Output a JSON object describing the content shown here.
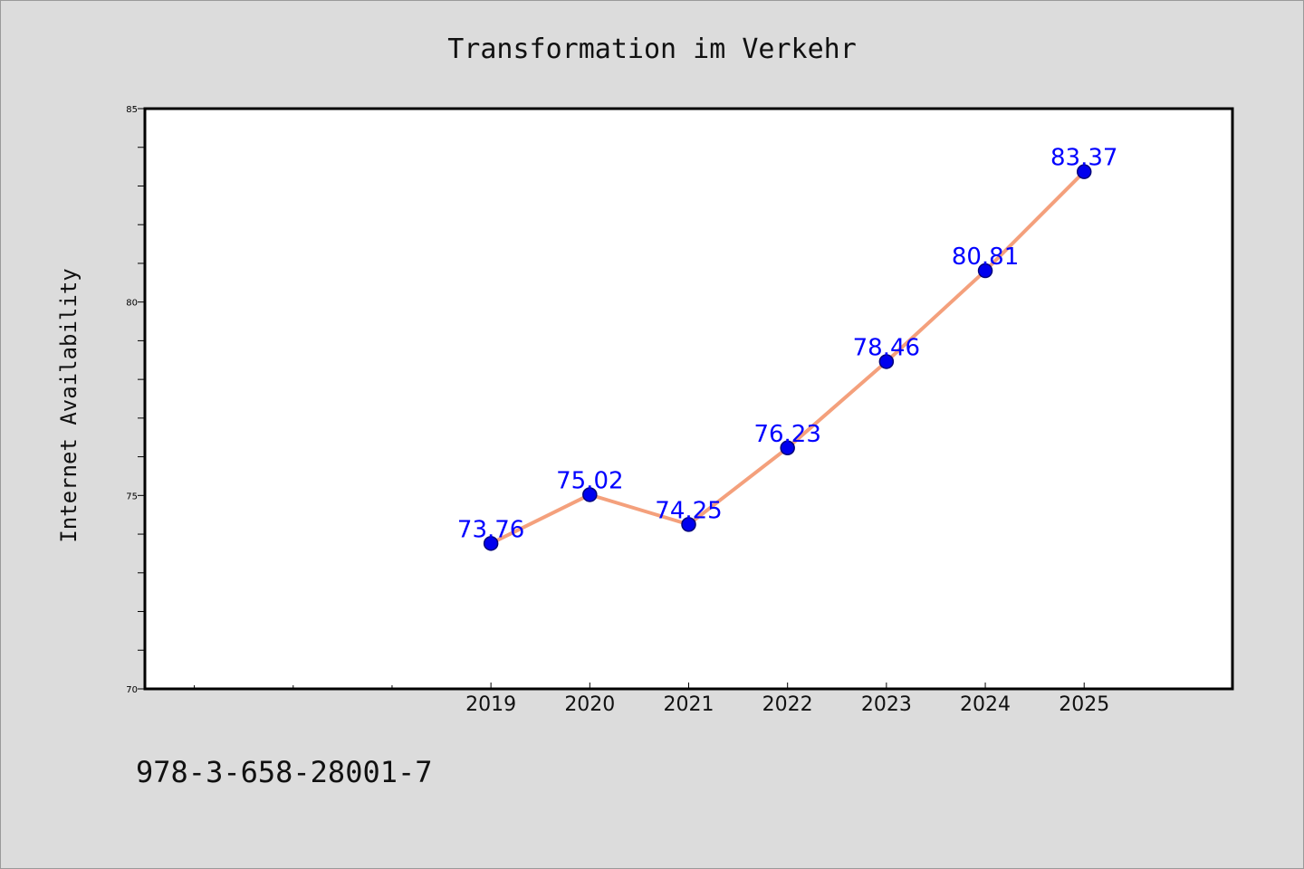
{
  "chart_data": {
    "type": "line",
    "title": "Transformation im Verkehr",
    "ylabel": "Internet Availability",
    "xlabel": "",
    "x": [
      2019,
      2020,
      2021,
      2022,
      2023,
      2024,
      2025
    ],
    "categories": [
      "2019",
      "2020",
      "2021",
      "2022",
      "2023",
      "2024",
      "2025"
    ],
    "series": [
      {
        "values": [
          73.76,
          75.02,
          74.25,
          76.23,
          78.46,
          80.81,
          83.37
        ],
        "data_labels": [
          "73.76",
          "75.02",
          "74.25",
          "76.23",
          "78.46",
          "80.81",
          "83.37"
        ]
      }
    ],
    "xlim": [
      2015.5,
      2026.5
    ],
    "ylim": [
      70,
      85
    ],
    "yticks": [
      70,
      75,
      80,
      85
    ],
    "ytick_labels": [
      "70",
      "75",
      "80",
      "85"
    ],
    "y_minor_step": 1,
    "x_minor_ticks": [
      2016,
      2017,
      2018
    ],
    "grid": false,
    "legend": "none",
    "colors": {
      "line": "#f4a07c",
      "marker": "#0000ee",
      "marker_edge": "#00007a",
      "data_label": "#0000ff",
      "background": "#dcdcdc",
      "plot_area": "#ffffff"
    }
  },
  "footer": {
    "isbn": "978-3-658-28001-7"
  }
}
